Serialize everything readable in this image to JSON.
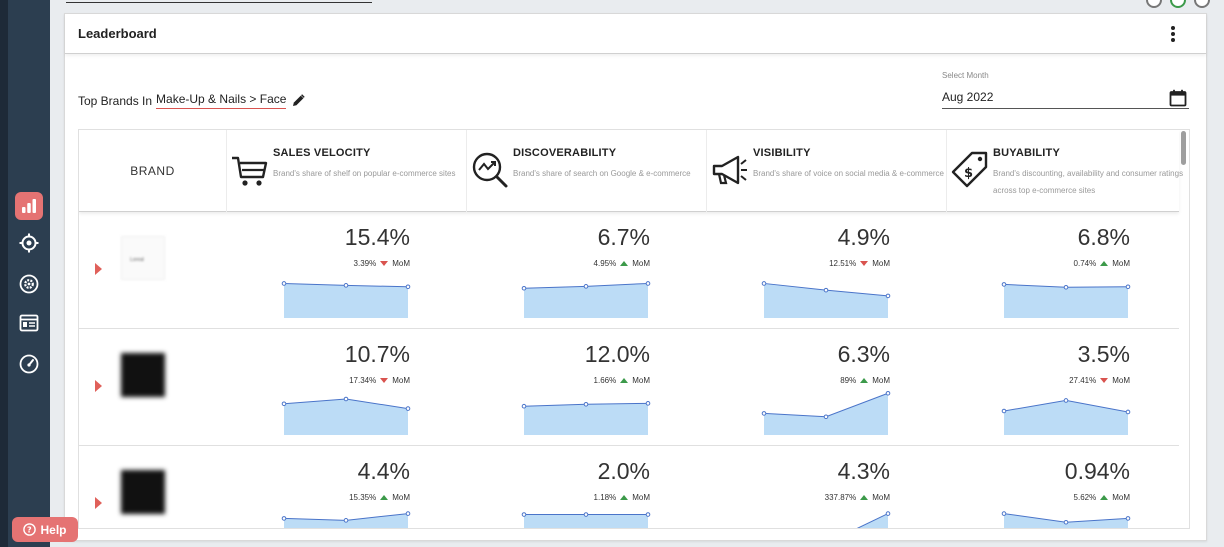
{
  "card": {
    "title": "Leaderboard"
  },
  "filter": {
    "label": "Top Brands In",
    "value": "Make-Up & Nails > Face"
  },
  "month": {
    "label": "Select Month",
    "value": "Aug 2022"
  },
  "table": {
    "brand_header": "BRAND",
    "metrics": [
      {
        "title": "SALES VELOCITY",
        "desc": "Brand's share of shelf on popular e-commerce sites",
        "icon": "cart-icon"
      },
      {
        "title": "DISCOVERABILITY",
        "desc": "Brand's share of search on Google & e-commerce",
        "icon": "search-trend-icon"
      },
      {
        "title": "VISIBILITY",
        "desc": "Brand's share of voice on social media & e-commerce",
        "icon": "megaphone-icon"
      },
      {
        "title": "BUYABILITY",
        "desc": "Brand's discounting, availability and consumer ratings across top e-commerce sites",
        "icon": "price-tag-icon"
      }
    ],
    "rows": [
      {
        "logo_style": "light",
        "logo_text": "Loreal",
        "cells": [
          {
            "value": "15.4%",
            "change": "3.39%",
            "direction": "down",
            "mom": "MoM",
            "trend": [
              0.72,
              0.68,
              0.65
            ]
          },
          {
            "value": "6.7%",
            "change": "4.95%",
            "direction": "up",
            "mom": "MoM",
            "trend": [
              0.62,
              0.66,
              0.72
            ]
          },
          {
            "value": "4.9%",
            "change": "12.51%",
            "direction": "down",
            "mom": "MoM",
            "trend": [
              0.72,
              0.58,
              0.46
            ]
          },
          {
            "value": "6.8%",
            "change": "0.74%",
            "direction": "up",
            "mom": "MoM",
            "trend": [
              0.7,
              0.64,
              0.65
            ]
          }
        ]
      },
      {
        "logo_style": "dark",
        "cells": [
          {
            "value": "10.7%",
            "change": "17.34%",
            "direction": "down",
            "mom": "MoM",
            "trend": [
              0.65,
              0.75,
              0.55
            ]
          },
          {
            "value": "12.0%",
            "change": "1.66%",
            "direction": "up",
            "mom": "MoM",
            "trend": [
              0.6,
              0.64,
              0.66
            ]
          },
          {
            "value": "6.3%",
            "change": "89%",
            "direction": "up",
            "mom": "MoM",
            "trend": [
              0.45,
              0.38,
              0.87
            ]
          },
          {
            "value": "3.5%",
            "change": "27.41%",
            "direction": "down",
            "mom": "MoM",
            "trend": [
              0.5,
              0.72,
              0.48
            ]
          }
        ]
      },
      {
        "logo_style": "dark",
        "cells": [
          {
            "value": "4.4%",
            "change": "15.35%",
            "direction": "up",
            "mom": "MoM",
            "trend": [
              0.7,
              0.66,
              0.8
            ]
          },
          {
            "value": "2.0%",
            "change": "1.18%",
            "direction": "up",
            "mom": "MoM",
            "trend": [
              0.78,
              0.78,
              0.78
            ]
          },
          {
            "value": "4.3%",
            "change": "337.87%",
            "direction": "up",
            "mom": "MoM",
            "trend": [
              0.02,
              0.18,
              0.8
            ]
          },
          {
            "value": "0.94%",
            "change": "5.62%",
            "direction": "up",
            "mom": "MoM",
            "trend": [
              0.8,
              0.62,
              0.7
            ]
          }
        ]
      }
    ]
  },
  "sidebar": {
    "items": [
      {
        "icon": "bar-chart-icon",
        "active": true
      },
      {
        "icon": "target-icon",
        "active": false
      },
      {
        "icon": "settings-icon",
        "active": false
      },
      {
        "icon": "list-card-icon",
        "active": false
      },
      {
        "icon": "gauge-icon",
        "active": false
      }
    ]
  },
  "help": {
    "label": "Help"
  },
  "colors": {
    "accent": "#e57373",
    "sidebar": "#2c3e50",
    "up": "#3c9a4a",
    "down": "#d9534f",
    "spark_fill": "#bcdcf6",
    "spark_line": "#4a74c9"
  }
}
